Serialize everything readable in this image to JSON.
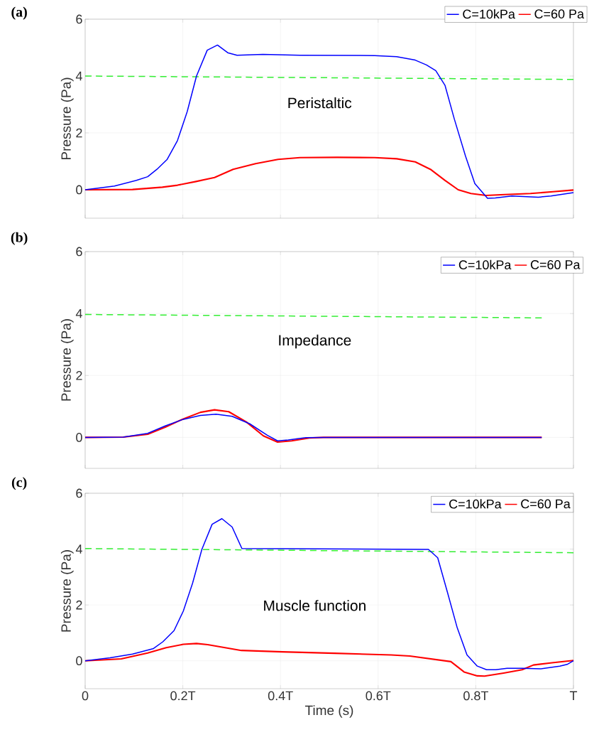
{
  "chart_data": [
    {
      "type": "line",
      "annotations": [
        "(a)",
        "Peristaltic"
      ],
      "ylabel": "Pressure (Pa)",
      "xlim": [
        0,
        1
      ],
      "ylim": [
        -1,
        6
      ],
      "yticks": [
        0,
        2,
        4,
        6
      ],
      "xticks": [
        {
          "value": 0,
          "label": null
        },
        {
          "value": 0.2,
          "label": null
        },
        {
          "value": 0.4,
          "label": null
        },
        {
          "value": 0.6,
          "label": null
        },
        {
          "value": 0.8,
          "label": null
        },
        {
          "value": 1,
          "label": null
        }
      ],
      "tick_labels": "y",
      "grid": true,
      "legend": "top right",
      "series": [
        {
          "name": "C=10kPa",
          "color": "#0000ff",
          "x": [
            0,
            0.06,
            0.105,
            0.128,
            0.147,
            0.168,
            0.189,
            0.209,
            0.228,
            0.25,
            0.271,
            0.292,
            0.311,
            0.364,
            0.44,
            0.593,
            0.638,
            0.676,
            0.699,
            0.718,
            0.737,
            0.756,
            0.779,
            0.798,
            0.819,
            0.824,
            0.84,
            0.874,
            0.928,
            0.954,
            1.0
          ],
          "values": [
            0,
            0.13,
            0.33,
            0.46,
            0.72,
            1.07,
            1.73,
            2.75,
            4.0,
            4.91,
            5.09,
            4.82,
            4.73,
            4.76,
            4.73,
            4.72,
            4.68,
            4.56,
            4.39,
            4.19,
            3.67,
            2.49,
            1.18,
            0.22,
            -0.2,
            -0.3,
            -0.29,
            -0.22,
            -0.26,
            -0.22,
            -0.1
          ]
        },
        {
          "name": "C=60 Pa",
          "color": "#ff0000",
          "x": [
            0,
            0.097,
            0.158,
            0.189,
            0.227,
            0.265,
            0.303,
            0.349,
            0.395,
            0.44,
            0.516,
            0.593,
            0.638,
            0.676,
            0.707,
            0.737,
            0.764,
            0.79,
            0.821,
            0.859,
            0.912,
            0.958,
            1.0
          ],
          "values": [
            0,
            0.01,
            0.09,
            0.16,
            0.29,
            0.43,
            0.72,
            0.92,
            1.07,
            1.13,
            1.14,
            1.13,
            1.09,
            0.98,
            0.72,
            0.33,
            0.0,
            -0.13,
            -0.2,
            -0.17,
            -0.13,
            -0.07,
            -0.01
          ]
        },
        {
          "color": "#33ee33",
          "line_style": "dashed",
          "x": [
            0,
            1
          ],
          "values": [
            4.0,
            3.88
          ]
        }
      ]
    },
    {
      "type": "line",
      "annotations": [
        "(b)",
        "Impedance"
      ],
      "ylabel": "Pressure (Pa)",
      "xlim": [
        0,
        1
      ],
      "ylim": [
        -1,
        6
      ],
      "yticks": [
        0,
        2,
        4,
        6
      ],
      "xticks": [
        {
          "value": 0,
          "label": null
        },
        {
          "value": 0.2,
          "label": null
        },
        {
          "value": 0.4,
          "label": null
        },
        {
          "value": 0.6,
          "label": null
        },
        {
          "value": 0.8,
          "label": null
        },
        {
          "value": 1,
          "label": null
        }
      ],
      "tick_labels": "y",
      "grid": true,
      "legend": "top right",
      "series": [
        {
          "name": "C=10kPa",
          "color": "#0000ff",
          "x": [
            0,
            0.078,
            0.128,
            0.164,
            0.2,
            0.236,
            0.268,
            0.301,
            0.337,
            0.373,
            0.394,
            0.416,
            0.452,
            0.488,
            0.935
          ],
          "values": [
            0,
            0.01,
            0.13,
            0.37,
            0.58,
            0.71,
            0.75,
            0.68,
            0.44,
            0.07,
            -0.11,
            -0.08,
            -0.01,
            0,
            0
          ]
        },
        {
          "name": "C=60 Pa",
          "color": "#ff0000",
          "x": [
            0,
            0.078,
            0.128,
            0.164,
            0.2,
            0.236,
            0.265,
            0.294,
            0.33,
            0.365,
            0.394,
            0.423,
            0.459,
            0.488,
            0.935
          ],
          "values": [
            0,
            0.01,
            0.1,
            0.33,
            0.59,
            0.81,
            0.89,
            0.83,
            0.5,
            0.05,
            -0.15,
            -0.11,
            -0.02,
            0,
            0
          ]
        },
        {
          "color": "#33ee33",
          "line_style": "dashed",
          "x": [
            0,
            0.935
          ],
          "values": [
            3.97,
            3.86
          ]
        }
      ]
    },
    {
      "type": "line",
      "annotations": [
        "(c)",
        "Muscle function"
      ],
      "xlabel": "Time (s)",
      "ylabel": "Pressure (Pa)",
      "xlim": [
        0,
        1
      ],
      "ylim": [
        -1,
        6
      ],
      "yticks": [
        0,
        2,
        4,
        6
      ],
      "xticks": [
        0,
        {
          "value": 0.2,
          "label": "0.2T"
        },
        {
          "value": 0.4,
          "label": "0.4T"
        },
        {
          "value": 0.6,
          "label": "0.6T"
        },
        {
          "value": 0.8,
          "label": "0.8T"
        },
        {
          "value": 1,
          "label": "T"
        }
      ],
      "grid": true,
      "legend": "top right",
      "series": [
        {
          "name": "C=10kPa",
          "color": "#0000ff",
          "x": [
            0,
            0.051,
            0.097,
            0.14,
            0.159,
            0.182,
            0.201,
            0.22,
            0.239,
            0.26,
            0.28,
            0.301,
            0.321,
            0.703,
            0.722,
            0.742,
            0.762,
            0.782,
            0.803,
            0.822,
            0.841,
            0.864,
            0.895,
            0.933,
            0.972,
            0.987,
            1.0
          ],
          "values": [
            0,
            0.11,
            0.24,
            0.44,
            0.68,
            1.08,
            1.78,
            2.78,
            3.99,
            4.89,
            5.09,
            4.79,
            4.02,
            3.99,
            3.69,
            2.45,
            1.18,
            0.21,
            -0.19,
            -0.32,
            -0.32,
            -0.27,
            -0.27,
            -0.29,
            -0.19,
            -0.13,
            0
          ]
        },
        {
          "name": "C=60 Pa",
          "color": "#ff0000",
          "x": [
            0,
            0.074,
            0.128,
            0.166,
            0.201,
            0.228,
            0.251,
            0.32,
            0.404,
            0.511,
            0.627,
            0.665,
            0.749,
            0.776,
            0.803,
            0.818,
            0.857,
            0.895,
            0.918,
            0.956,
            1.0
          ],
          "values": [
            0,
            0.07,
            0.28,
            0.47,
            0.59,
            0.62,
            0.58,
            0.37,
            0.32,
            0.27,
            0.21,
            0.17,
            -0.03,
            -0.4,
            -0.54,
            -0.55,
            -0.44,
            -0.32,
            -0.15,
            -0.07,
            0.01
          ]
        },
        {
          "color": "#33ee33",
          "line_style": "dashed",
          "x": [
            0,
            1
          ],
          "values": [
            4.02,
            3.87
          ]
        }
      ]
    }
  ]
}
